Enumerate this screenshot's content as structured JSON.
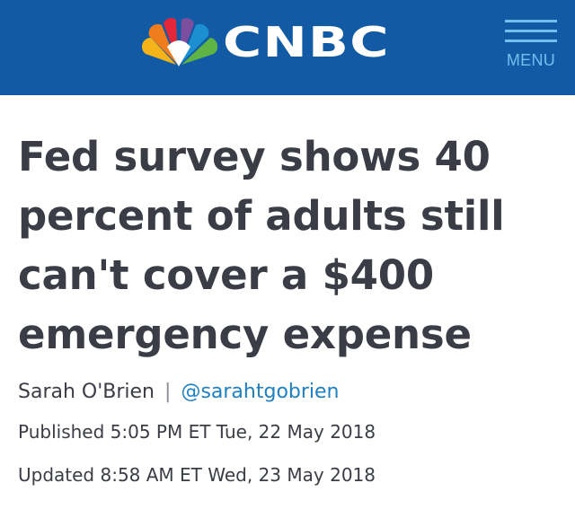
{
  "header": {
    "brand": "CNBC",
    "brand_logo_icon": "peacock-logo-icon",
    "menu_label": "MENU",
    "colors": {
      "background": "#135aa5",
      "menu": "#6fc0ee",
      "brand_text": "#ffffff"
    }
  },
  "article": {
    "headline": "Fed survey shows 40 percent of adults still can't cover a $400 emergency expense",
    "author": "Sarah O'Brien",
    "separator": "|",
    "author_handle": "@sarahtgobrien",
    "published": "Published 5:05 PM ET Tue, 22 May 2018",
    "updated": "Updated 8:58 AM ET Wed, 23 May 2018",
    "colors": {
      "text": "#3a3d45",
      "link": "#1e7fc2"
    }
  }
}
